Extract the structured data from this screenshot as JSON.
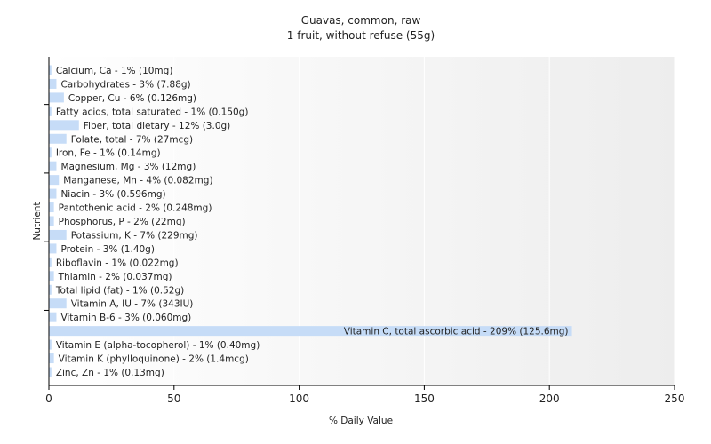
{
  "chart_data": {
    "type": "bar",
    "orientation": "horizontal",
    "title": "Guavas, common, raw",
    "subtitle": "1 fruit, without refuse (55g)",
    "xlabel": "% Daily Value",
    "ylabel": "Nutrient",
    "xlim": [
      0,
      250
    ],
    "xticks": [
      0,
      50,
      100,
      150,
      200,
      250
    ],
    "grid": true,
    "bar_color": "#c6dcf7",
    "categories": [
      "Calcium, Ca",
      "Carbohydrates",
      "Copper, Cu",
      "Fatty acids, total saturated",
      "Fiber, total dietary",
      "Folate, total",
      "Iron, Fe",
      "Magnesium, Mg",
      "Manganese, Mn",
      "Niacin",
      "Pantothenic acid",
      "Phosphorus, P",
      "Potassium, K",
      "Protein",
      "Riboflavin",
      "Thiamin",
      "Total lipid (fat)",
      "Vitamin A, IU",
      "Vitamin B-6",
      "Vitamin C, total ascorbic acid",
      "Vitamin E (alpha-tocopherol)",
      "Vitamin K (phylloquinone)",
      "Zinc, Zn"
    ],
    "values": [
      1,
      3,
      6,
      1,
      12,
      7,
      1,
      3,
      4,
      3,
      2,
      2,
      7,
      3,
      1,
      2,
      1,
      7,
      3,
      209,
      1,
      2,
      1
    ],
    "labels": [
      "Calcium, Ca - 1% (10mg)",
      "Carbohydrates - 3% (7.88g)",
      "Copper, Cu - 6% (0.126mg)",
      "Fatty acids, total saturated - 1% (0.150g)",
      "Fiber, total dietary - 12% (3.0g)",
      "Folate, total - 7% (27mcg)",
      "Iron, Fe - 1% (0.14mg)",
      "Magnesium, Mg - 3% (12mg)",
      "Manganese, Mn - 4% (0.082mg)",
      "Niacin - 3% (0.596mg)",
      "Pantothenic acid - 2% (0.248mg)",
      "Phosphorus, P - 2% (22mg)",
      "Potassium, K - 7% (229mg)",
      "Protein - 3% (1.40g)",
      "Riboflavin - 1% (0.022mg)",
      "Thiamin - 2% (0.037mg)",
      "Total lipid (fat) - 1% (0.52g)",
      "Vitamin A, IU - 7% (343IU)",
      "Vitamin B-6 - 3% (0.060mg)",
      "Vitamin C, total ascorbic acid - 209% (125.6mg)",
      "Vitamin E (alpha-tocopherol) - 1% (0.40mg)",
      "Vitamin K (phylloquinone) - 2% (1.4mcg)",
      "Zinc, Zn - 1% (0.13mg)"
    ]
  }
}
